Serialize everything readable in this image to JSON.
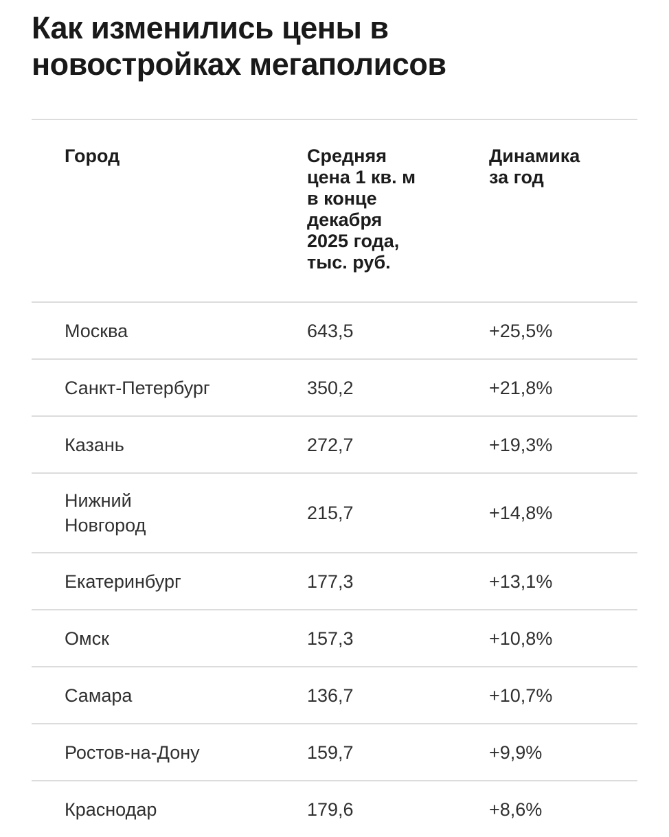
{
  "title": "Как изменились цены в\nновостройках мегаполисов",
  "table": {
    "header": {
      "city": "Город",
      "price": "Средняя\nцена 1 кв. м\nв конце\nдекабря\n2025 года,\nтыс. руб.",
      "change": "Динамика\nза год"
    },
    "rows": [
      {
        "city": "Москва",
        "price": "643,5",
        "change": "+25,5%"
      },
      {
        "city": "Санкт-Петербург",
        "price": "350,2",
        "change": "+21,8%"
      },
      {
        "city": "Казань",
        "price": "272,7",
        "change": "+19,3%"
      },
      {
        "city": "Нижний\nНовгород",
        "price": "215,7",
        "change": "+14,8%"
      },
      {
        "city": "Екатеринбург",
        "price": "177,3",
        "change": "+13,1%"
      },
      {
        "city": "Омск",
        "price": "157,3",
        "change": "+10,8%"
      },
      {
        "city": "Самара",
        "price": "136,7",
        "change": "+10,7%"
      },
      {
        "city": "Ростов-на-Дону",
        "price": "159,7",
        "change": "+9,9%"
      },
      {
        "city": "Краснодар",
        "price": "179,6",
        "change": "+8,6%"
      }
    ]
  },
  "chart_data": {
    "type": "table",
    "title": "Как изменились цены в новостройках мегаполисов",
    "columns": [
      "Город",
      "Средняя цена 1 кв. м в конце декабря 2025 года, тыс. руб.",
      "Динамика за год"
    ],
    "rows": [
      [
        "Москва",
        "643,5",
        "+25,5%"
      ],
      [
        "Санкт-Петербург",
        "350,2",
        "+21,8%"
      ],
      [
        "Казань",
        "272,7",
        "+19,3%"
      ],
      [
        "Нижний Новгород",
        "215,7",
        "+14,8%"
      ],
      [
        "Екатеринбург",
        "177,3",
        "+13,1%"
      ],
      [
        "Омск",
        "157,3",
        "+10,8%"
      ],
      [
        "Самара",
        "136,7",
        "+10,7%"
      ],
      [
        "Ростов-на-Дону",
        "159,7",
        "+9,9%"
      ],
      [
        "Краснодар",
        "179,6",
        "+8,6%"
      ]
    ],
    "price_values_thousand_rub": [
      643.5,
      350.2,
      272.7,
      215.7,
      177.3,
      157.3,
      136.7,
      159.7,
      179.6
    ],
    "change_percent_values": [
      25.5,
      21.8,
      19.3,
      14.8,
      13.1,
      10.8,
      10.7,
      9.9,
      8.6
    ]
  },
  "colors": {
    "background": "#ffffff",
    "title_text": "#191919",
    "header_text": "#1c1c1c",
    "body_text": "#303030",
    "divider": "#dcdcdc"
  }
}
